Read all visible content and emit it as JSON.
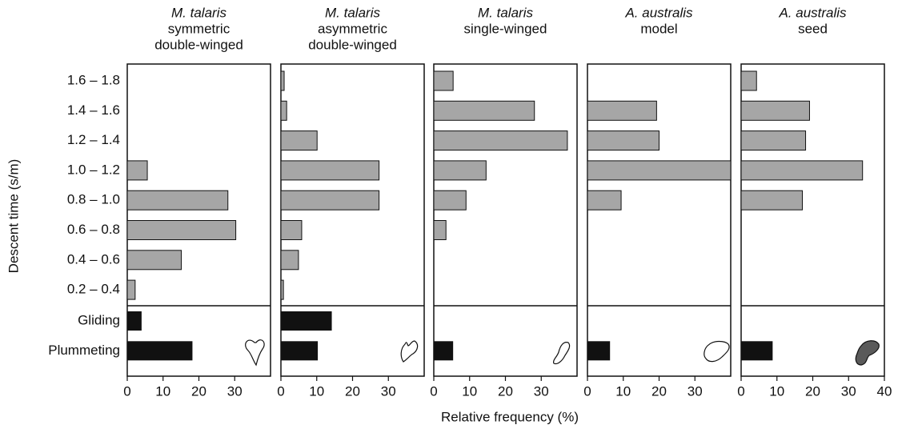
{
  "chart_data": {
    "type": "bar",
    "y_label": "Descent time (s/m)",
    "x_label": "Relative frequency (%)",
    "categories": [
      "1.6 – 1.8",
      "1.4 – 1.6",
      "1.2 – 1.4",
      "1.0 – 1.2",
      "0.8 – 1.0",
      "0.6 – 0.8",
      "0.4 – 0.6",
      "0.2 – 0.4"
    ],
    "mode_categories": [
      "Gliding",
      "Plummeting"
    ],
    "xlim": [
      0,
      40
    ],
    "bar_color": "#a6a6a6",
    "mode_color": "#111111",
    "panels": [
      {
        "species": "M. talaris",
        "subtitle": [
          "symmetric",
          "double-winged"
        ],
        "values": [
          0,
          0,
          0,
          5.6,
          28.1,
          30.3,
          15.1,
          2.2
        ],
        "mode_values": [
          4.0,
          18.2
        ],
        "xticks": [
          0,
          10,
          20,
          30
        ]
      },
      {
        "species": "M. talaris",
        "subtitle": [
          "asymmetric",
          "double-winged"
        ],
        "values": [
          0.9,
          1.6,
          10.1,
          27.4,
          27.4,
          5.8,
          4.9,
          0.7
        ],
        "mode_values": [
          14.2,
          10.3
        ],
        "xticks": [
          0,
          10,
          20,
          30
        ]
      },
      {
        "species": "M. talaris",
        "subtitle": [
          "single-winged"
        ],
        "values": [
          5.4,
          28.1,
          37.3,
          14.6,
          9.0,
          3.4,
          0,
          0
        ],
        "mode_values": [
          0,
          5.4
        ],
        "xticks": [
          0,
          10,
          20,
          30
        ]
      },
      {
        "species": "A. australis",
        "subtitle": [
          "model"
        ],
        "values": [
          0,
          19.3,
          20.0,
          40,
          9.4,
          0,
          0,
          0
        ],
        "mode_values": [
          0,
          6.3
        ],
        "xticks": [
          0,
          10,
          20,
          30
        ]
      },
      {
        "species": "A. australis",
        "subtitle": [
          "seed"
        ],
        "values": [
          4.3,
          19.1,
          18.0,
          33.9,
          17.1,
          0,
          0,
          0
        ],
        "mode_values": [
          0,
          8.8
        ],
        "xticks": [
          0,
          10,
          20,
          30,
          40
        ]
      }
    ]
  }
}
